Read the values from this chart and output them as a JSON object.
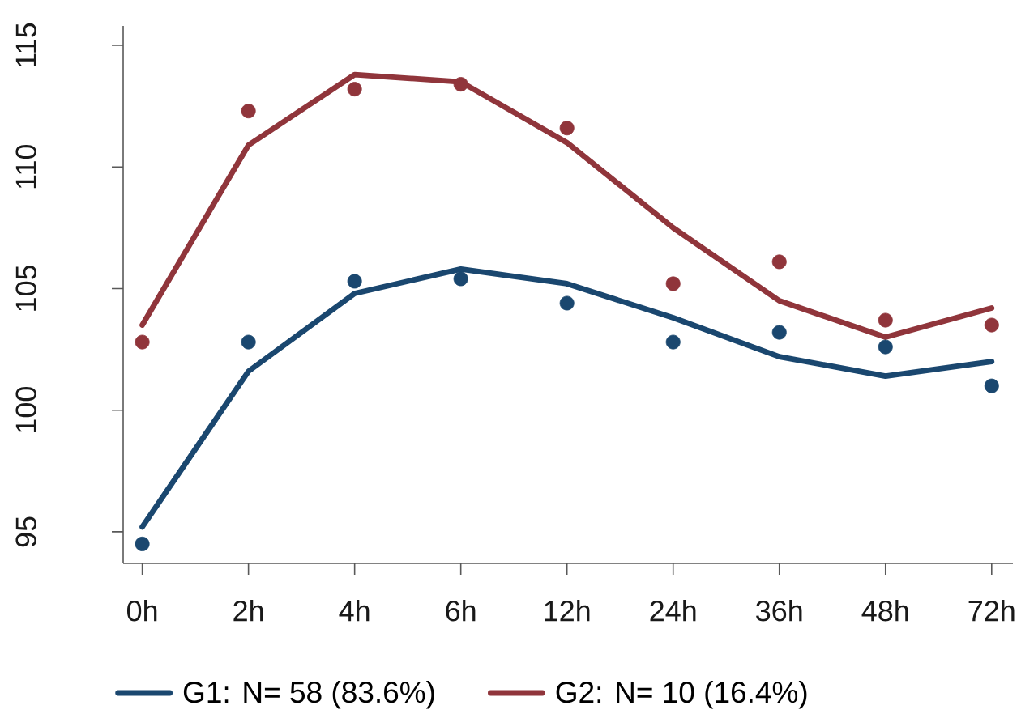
{
  "chart_data": {
    "type": "line",
    "categories": [
      "0h",
      "2h",
      "4h",
      "6h",
      "12h",
      "24h",
      "36h",
      "48h",
      "72h"
    ],
    "ylim": [
      93.7,
      115.8
    ],
    "yticks": [
      95,
      100,
      105,
      110,
      115
    ],
    "legend": "bottom",
    "series": [
      {
        "name": "G1: N= 58   (83.6%)",
        "color": "#1a476f",
        "marker": "none",
        "line_style": "solid",
        "values": [
          95.2,
          101.6,
          104.8,
          105.8,
          105.2,
          103.8,
          102.2,
          101.4,
          102.0
        ]
      },
      {
        "type": "scatter",
        "color": "#1a476f",
        "marker": "circle",
        "values": [
          94.5,
          102.8,
          105.3,
          105.4,
          104.4,
          102.8,
          103.2,
          102.6,
          101.0
        ]
      },
      {
        "name": "G2: N= 10   (16.4%)",
        "color": "#90353b",
        "marker": "none",
        "line_style": "solid",
        "values": [
          103.5,
          110.9,
          113.8,
          113.5,
          111.0,
          107.5,
          104.5,
          103.0,
          104.2
        ]
      },
      {
        "type": "scatter",
        "color": "#90353b",
        "marker": "circle",
        "values": [
          102.8,
          112.3,
          113.2,
          113.4,
          111.6,
          105.2,
          106.1,
          103.7,
          103.5
        ]
      }
    ]
  }
}
